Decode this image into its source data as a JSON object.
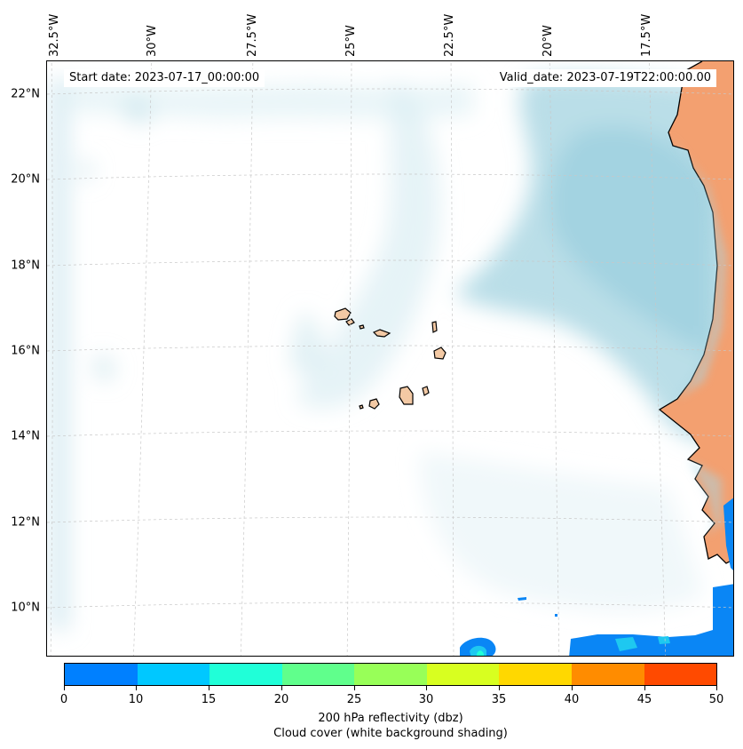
{
  "header": {
    "start_date": "Start date: 2023-07-17_00:00:00",
    "valid_date": "Valid_date: 2023-07-19T22:00:00.00"
  },
  "axes": {
    "latitude_labels": [
      "22°N",
      "20°N",
      "18°N",
      "16°N",
      "14°N",
      "12°N",
      "10°N"
    ],
    "longitude_labels": [
      "32.5°W",
      "30°W",
      "27.5°W",
      "25°W",
      "22.5°W",
      "20°W",
      "17.5°W"
    ]
  },
  "colorbar": {
    "ticks": [
      "0",
      "10",
      "15",
      "20",
      "25",
      "30",
      "35",
      "40",
      "45",
      "50"
    ],
    "colors": [
      "#0080ff",
      "#00c8ff",
      "#20ffd8",
      "#60ff8c",
      "#98ff58",
      "#d8ff20",
      "#ffd800",
      "#ff8c00",
      "#ff4a00"
    ],
    "label": "200 hPa reflectivity (dbz)",
    "sublabel": "Cloud cover (white background shading)"
  },
  "colors": {
    "cloud": "#a8d5e2",
    "land": "#f3a070",
    "reflectivity_low": "#0a86f5",
    "reflectivity_mid": "#1ec8f0",
    "reflectivity_high": "#20ffd8"
  }
}
